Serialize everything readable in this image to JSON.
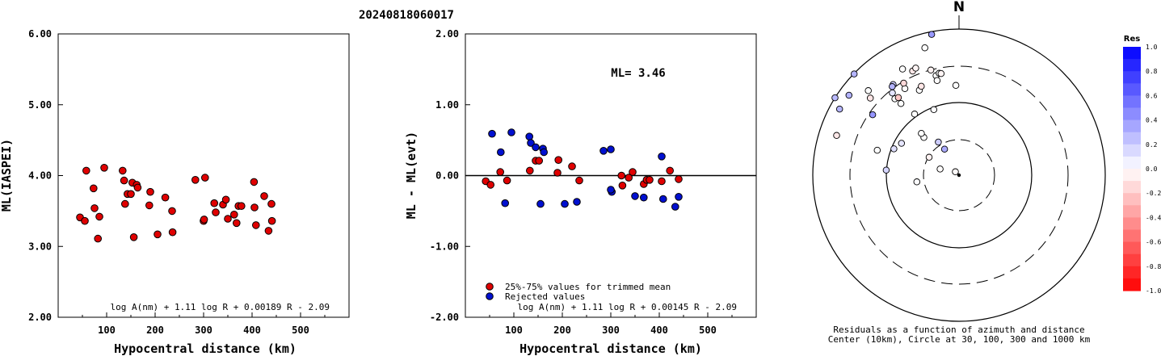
{
  "title": "20240818060017",
  "colors": {
    "used": "#e00000",
    "rejected": "#0010d0"
  },
  "chart_data": [
    {
      "type": "scatter",
      "xlabel": "Hypocentral distance (km)",
      "ylabel": "ML(IASPEI)",
      "xlim": [
        0,
        600
      ],
      "ylim": [
        2.0,
        6.0
      ],
      "xticks": [
        "100",
        "200",
        "300",
        "400",
        "500"
      ],
      "yticks": [
        "2.00",
        "3.00",
        "4.00",
        "5.00",
        "6.00"
      ],
      "equation": "log A(nm) + 1.11 log R + 0.00189 R - 2.09",
      "series": [
        {
          "points": [
            [
              45,
              3.41
            ],
            [
              55,
              3.36
            ],
            [
              58,
              4.07
            ],
            [
              73,
              3.82
            ],
            [
              75,
              3.54
            ],
            [
              82,
              3.11
            ],
            [
              85,
              3.42
            ],
            [
              95,
              4.11
            ],
            [
              133,
              4.07
            ],
            [
              136,
              3.93
            ],
            [
              138,
              3.6
            ],
            [
              143,
              3.74
            ],
            [
              150,
              3.74
            ],
            [
              153,
              3.9
            ],
            [
              156,
              3.13
            ],
            [
              162,
              3.87
            ],
            [
              164,
              3.83
            ],
            [
              188,
              3.58
            ],
            [
              190,
              3.77
            ],
            [
              205,
              3.17
            ],
            [
              221,
              3.69
            ],
            [
              235,
              3.5
            ],
            [
              236,
              3.2
            ],
            [
              283,
              3.94
            ],
            [
              300,
              3.36
            ],
            [
              301,
              3.38
            ],
            [
              303,
              3.97
            ],
            [
              322,
              3.61
            ],
            [
              325,
              3.48
            ],
            [
              340,
              3.59
            ],
            [
              346,
              3.66
            ],
            [
              350,
              3.39
            ],
            [
              363,
              3.45
            ],
            [
              368,
              3.33
            ],
            [
              372,
              3.57
            ],
            [
              378,
              3.57
            ],
            [
              404,
              3.91
            ],
            [
              405,
              3.55
            ],
            [
              408,
              3.3
            ],
            [
              425,
              3.71
            ],
            [
              434,
              3.22
            ],
            [
              440,
              3.6
            ],
            [
              441,
              3.36
            ]
          ]
        }
      ]
    },
    {
      "type": "scatter",
      "xlabel": "Hypocentral distance (km)",
      "ylabel": "ML - ML(evt)",
      "xlim": [
        0,
        600
      ],
      "ylim": [
        -2.0,
        2.0
      ],
      "xticks": [
        "100",
        "200",
        "300",
        "400",
        "500"
      ],
      "yticks": [
        "-2.00",
        "-1.00",
        "0.00",
        "1.00",
        "2.00"
      ],
      "annotation": "ML= 3.46",
      "equation": "log A(nm) + 1.11 log R + 0.00145 R - 2.09",
      "legend": [
        "25%-75% values for trimmed mean",
        "Rejected values"
      ],
      "series": [
        {
          "name": "25%-75% values for trimmed mean",
          "points": [
            [
              42,
              -0.08
            ],
            [
              52,
              -0.13
            ],
            [
              72,
              0.05
            ],
            [
              86,
              -0.07
            ],
            [
              133,
              0.07
            ],
            [
              145,
              0.21
            ],
            [
              152,
              0.21
            ],
            [
              190,
              0.04
            ],
            [
              192,
              0.22
            ],
            [
              220,
              0.13
            ],
            [
              235,
              -0.07
            ],
            [
              322,
              0.0
            ],
            [
              324,
              -0.14
            ],
            [
              337,
              -0.03
            ],
            [
              345,
              0.05
            ],
            [
              368,
              -0.12
            ],
            [
              374,
              -0.06
            ],
            [
              380,
              -0.06
            ],
            [
              405,
              -0.08
            ],
            [
              422,
              0.07
            ],
            [
              440,
              -0.05
            ]
          ]
        },
        {
          "name": "Rejected values",
          "points": [
            [
              55,
              0.59
            ],
            [
              73,
              0.33
            ],
            [
              82,
              -0.39
            ],
            [
              95,
              0.61
            ],
            [
              132,
              0.55
            ],
            [
              135,
              0.46
            ],
            [
              145,
              0.4
            ],
            [
              155,
              -0.4
            ],
            [
              160,
              0.38
            ],
            [
              162,
              0.33
            ],
            [
              205,
              -0.4
            ],
            [
              230,
              -0.37
            ],
            [
              285,
              0.35
            ],
            [
              300,
              0.37
            ],
            [
              302,
              -0.23
            ],
            [
              300,
              -0.2
            ],
            [
              350,
              -0.29
            ],
            [
              368,
              -0.31
            ],
            [
              405,
              0.27
            ],
            [
              408,
              -0.33
            ],
            [
              433,
              -0.44
            ],
            [
              440,
              -0.3
            ]
          ]
        }
      ]
    },
    {
      "type": "scatter",
      "title": "N",
      "caption": [
        "Residuals as a function of azimuth and distance",
        "Center (10km), Circle at 30, 100, 300 and 1000 km"
      ],
      "colorbar": {
        "label": "Res",
        "ticks": [
          "1.0",
          "0.8",
          "0.6",
          "0.4",
          "0.2",
          "0.0",
          "-0.2",
          "-0.4",
          "-0.6",
          "-0.8",
          "-1.0"
        ]
      },
      "points": [
        [
          4,
          288,
          -0.01
        ],
        [
          9,
          261,
          0.01
        ],
        [
          -4,
          313,
          -0.02
        ],
        [
          7,
          301,
          -0.05
        ],
        [
          24,
          274,
          0.17
        ],
        [
          35,
          287,
          0.0
        ],
        [
          6,
          331,
          0.33
        ],
        [
          8,
          328,
          0.2
        ],
        [
          22,
          292,
          0.12
        ],
        [
          12,
          317,
          0.0
        ],
        [
          14,
          318,
          0.0
        ],
        [
          19,
          299,
          0.1
        ],
        [
          26,
          324,
          0.0
        ],
        [
          43,
          321,
          0.0
        ],
        [
          54,
          320,
          0.0
        ],
        [
          64,
          305,
          0.41
        ],
        [
          58,
          328,
          0.0
        ],
        [
          45,
          335,
          0.0
        ],
        [
          49,
          337,
          -0.1
        ],
        [
          58,
          347,
          0.0
        ],
        [
          40,
          358,
          0.0
        ],
        [
          22,
          339,
          0.01
        ],
        [
          50,
          347,
          -0.01
        ],
        [
          61,
          349,
          0.0
        ],
        [
          65,
          321,
          0.11
        ],
        [
          68,
          329,
          -0.15
        ],
        [
          79,
          324,
          0.2
        ],
        [
          94,
          311,
          -0.1
        ],
        [
          60,
          350,
          -0.04
        ],
        [
          71,
          345,
          -0.05
        ],
        [
          84,
          336,
          -0.09
        ],
        [
          116,
          313,
          0.0
        ],
        [
          103,
          332,
          0.0
        ],
        [
          52,
          322,
          -0.22
        ],
        [
          88,
          338,
          -0.04
        ],
        [
          135,
          288,
          -0.09
        ],
        [
          174,
          299,
          0.29
        ],
        [
          171,
          306,
          0.3
        ],
        [
          76,
          323,
          0.3
        ],
        [
          218,
          349,
          0.4
        ],
        [
          150,
          345,
          0.0
        ],
        [
          235,
          314,
          0.29
        ],
        [
          242,
          302,
          0.27
        ]
      ]
    }
  ]
}
